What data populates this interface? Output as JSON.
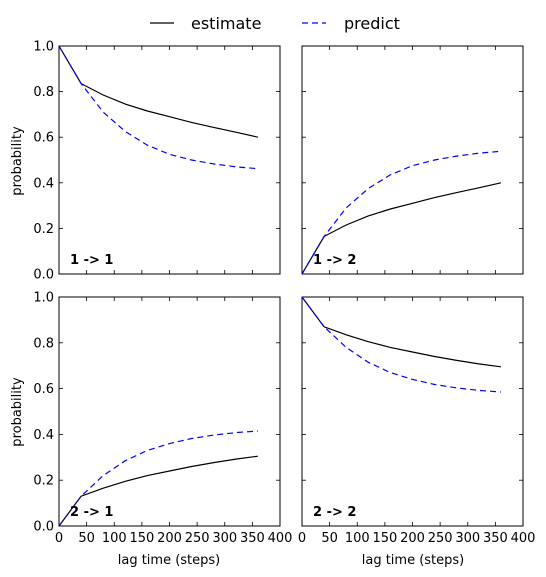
{
  "legend": {
    "items": [
      {
        "label": "estimate",
        "color": "#000000",
        "style": "solid"
      },
      {
        "label": "predict",
        "color": "#0000ff",
        "style": "dashed"
      }
    ]
  },
  "chart_data": {
    "type": "line",
    "layout": "2x2 grid, shared x and y axes",
    "xlabel": "lag time (steps)",
    "ylabel": "probability",
    "xlim": [
      0,
      400
    ],
    "ylim": [
      0,
      1.0
    ],
    "x_ticks": [
      0,
      50,
      100,
      150,
      200,
      250,
      300,
      350,
      400
    ],
    "y_ticks": [
      0.0,
      0.2,
      0.4,
      0.6,
      0.8,
      1.0
    ],
    "grid": false,
    "legend_position": "top-center",
    "panels": [
      {
        "label": "1 -> 1",
        "series": [
          {
            "name": "estimate",
            "color": "#000000",
            "style": "solid",
            "x": [
              0,
              40,
              80,
              120,
              160,
              200,
              240,
              280,
              320,
              360
            ],
            "y": [
              1.0,
              0.835,
              0.785,
              0.745,
              0.715,
              0.69,
              0.665,
              0.643,
              0.622,
              0.6
            ]
          },
          {
            "name": "predict",
            "color": "#0000ff",
            "style": "dashed",
            "x": [
              0,
              40,
              80,
              120,
              160,
              200,
              240,
              280,
              320,
              360
            ],
            "y": [
              1.0,
              0.835,
              0.71,
              0.625,
              0.565,
              0.525,
              0.5,
              0.483,
              0.47,
              0.462
            ]
          }
        ]
      },
      {
        "label": "1 -> 2",
        "series": [
          {
            "name": "estimate",
            "color": "#000000",
            "style": "solid",
            "x": [
              0,
              40,
              80,
              120,
              160,
              200,
              240,
              280,
              320,
              360
            ],
            "y": [
              0.0,
              0.165,
              0.215,
              0.255,
              0.285,
              0.31,
              0.335,
              0.357,
              0.378,
              0.4
            ]
          },
          {
            "name": "predict",
            "color": "#0000ff",
            "style": "dashed",
            "x": [
              0,
              40,
              80,
              120,
              160,
              200,
              240,
              280,
              320,
              360
            ],
            "y": [
              0.0,
              0.165,
              0.29,
              0.375,
              0.435,
              0.475,
              0.5,
              0.517,
              0.53,
              0.538
            ]
          }
        ]
      },
      {
        "label": "2 -> 1",
        "series": [
          {
            "name": "estimate",
            "color": "#000000",
            "style": "solid",
            "x": [
              0,
              40,
              80,
              120,
              160,
              200,
              240,
              280,
              320,
              360
            ],
            "y": [
              0.0,
              0.13,
              0.165,
              0.195,
              0.22,
              0.24,
              0.26,
              0.277,
              0.292,
              0.305
            ]
          },
          {
            "name": "predict",
            "color": "#0000ff",
            "style": "dashed",
            "x": [
              0,
              40,
              80,
              120,
              160,
              200,
              240,
              280,
              320,
              360
            ],
            "y": [
              0.0,
              0.13,
              0.22,
              0.285,
              0.33,
              0.36,
              0.382,
              0.397,
              0.408,
              0.415
            ]
          }
        ]
      },
      {
        "label": "2 -> 2",
        "series": [
          {
            "name": "estimate",
            "color": "#000000",
            "style": "solid",
            "x": [
              0,
              40,
              80,
              120,
              160,
              200,
              240,
              280,
              320,
              360
            ],
            "y": [
              1.0,
              0.87,
              0.835,
              0.805,
              0.78,
              0.76,
              0.74,
              0.723,
              0.708,
              0.695
            ]
          },
          {
            "name": "predict",
            "color": "#0000ff",
            "style": "dashed",
            "x": [
              0,
              40,
              80,
              120,
              160,
              200,
              240,
              280,
              320,
              360
            ],
            "y": [
              1.0,
              0.87,
              0.78,
              0.715,
              0.67,
              0.64,
              0.618,
              0.603,
              0.592,
              0.585
            ]
          }
        ]
      }
    ]
  }
}
